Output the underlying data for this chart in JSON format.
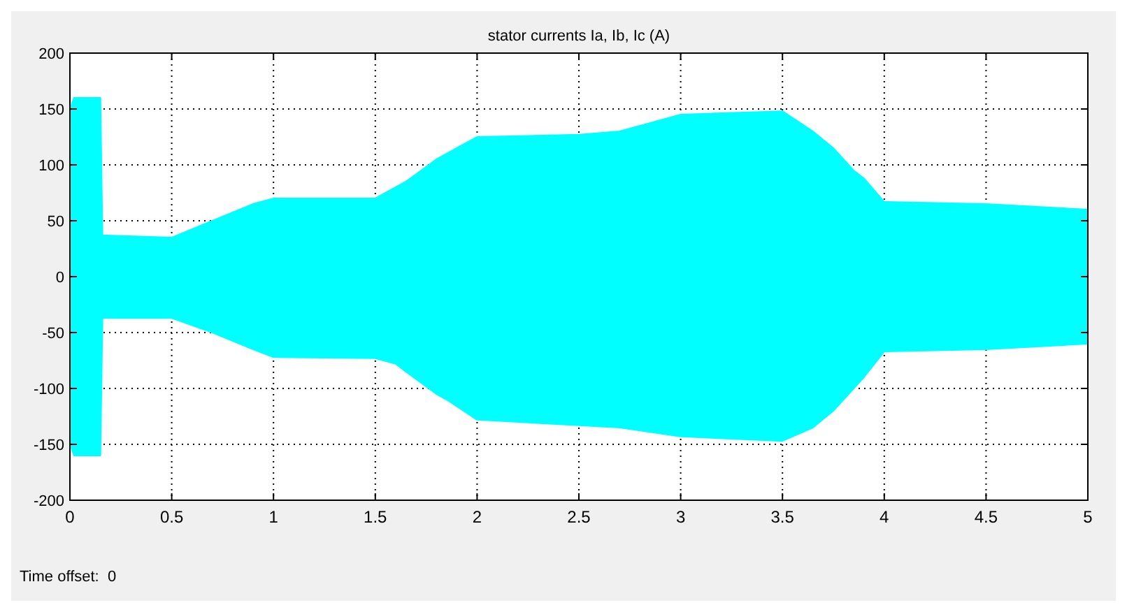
{
  "chart_data": {
    "type": "area",
    "title": "stator currents Ia, Ib, Ic (A)",
    "x": [
      0,
      0.02,
      0.15,
      0.16,
      0.5,
      0.7,
      0.9,
      1.0,
      1.5,
      1.6,
      1.65,
      1.8,
      1.85,
      2.0,
      2.5,
      2.7,
      3.0,
      3.5,
      3.65,
      3.75,
      3.85,
      3.9,
      4.0,
      4.5,
      5.0
    ],
    "series": [
      {
        "color": "#00ffff",
        "values": [
          150,
          160,
          160,
          37,
          35,
          50,
          65,
          70,
          70,
          80,
          85,
          105,
          110,
          125,
          127,
          130,
          145,
          148,
          130,
          115,
          95,
          88,
          67,
          65,
          60
        ]
      },
      {
        "color": "#00ffff",
        "values": [
          -150,
          -160,
          -160,
          -37,
          -37,
          -50,
          -65,
          -72,
          -73,
          -78,
          -85,
          -105,
          -110,
          -128,
          -133,
          -135,
          -143,
          -147,
          -135,
          -120,
          -100,
          -90,
          -67,
          -65,
          -60
        ]
      }
    ],
    "xlim": [
      0,
      5
    ],
    "xticks": [
      0,
      0.5,
      1,
      1.5,
      2,
      2.5,
      3,
      3.5,
      4,
      4.5,
      5
    ],
    "ylim": [
      -200,
      200
    ],
    "yticks": [
      -200,
      -150,
      -100,
      -50,
      0,
      50,
      100,
      150,
      200
    ],
    "grid": true,
    "annotations": [
      "Time offset:  0"
    ]
  }
}
